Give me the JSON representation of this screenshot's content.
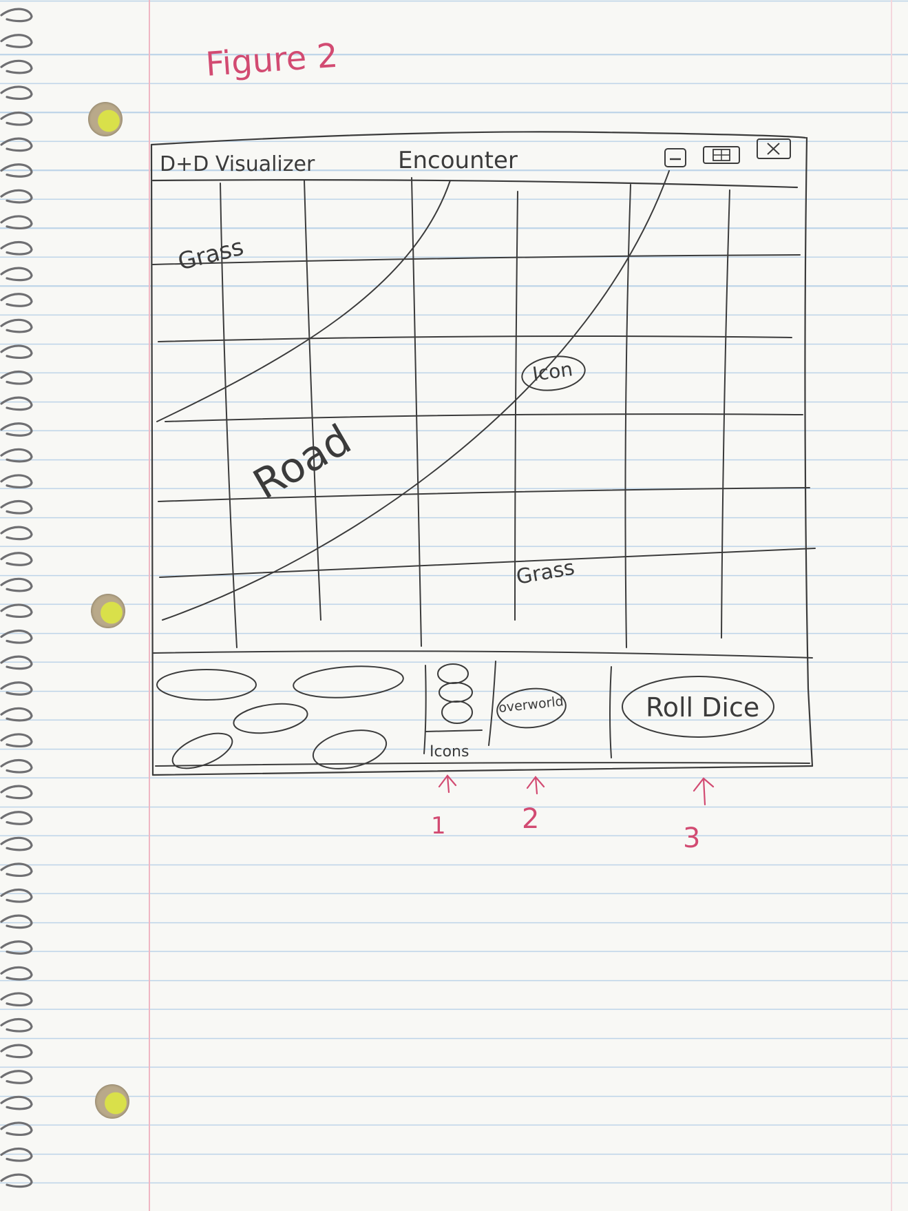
{
  "caption": "Figure 2",
  "window": {
    "app_title": "D+D Visualizer",
    "view_title": "Encounter",
    "controls": {
      "minimize_icon": "minimize-icon",
      "maximize_icon": "maximize-icon",
      "close_icon": "close-icon"
    }
  },
  "map": {
    "labels": {
      "grass_top": "Grass",
      "road": "Road",
      "icon": "Icon",
      "grass_bottom": "Grass"
    }
  },
  "bottom_panel": {
    "icons_label": "Icons",
    "overworld_label": "overworld",
    "roll_dice_label": "Roll Dice"
  },
  "annotations": [
    "1",
    "2",
    "3"
  ],
  "colors": {
    "pencil": "#3b3b3b",
    "red_pen": "#d24b72",
    "ruled_line": "#bcd3e8",
    "margin_line": "#efb7c3"
  }
}
